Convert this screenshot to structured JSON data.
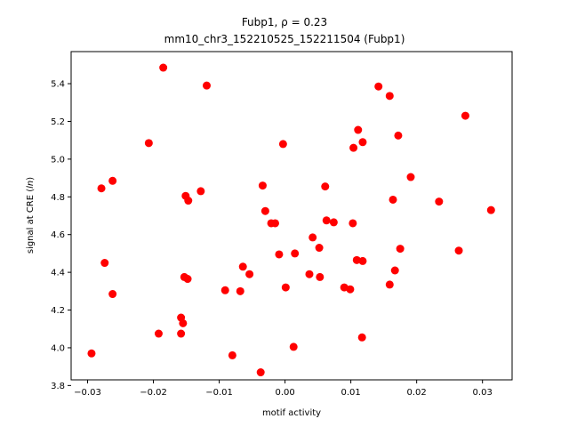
{
  "chart_data": {
    "type": "scatter",
    "title_line1": "Fubp1, ρ = 0.23",
    "title_line2": "mm10_chr3_152210525_152211504 (Fubp1)",
    "xlabel": "motif activity",
    "ylabel": "signal at CRE (ln)",
    "xlim": [
      -0.0325,
      0.0345
    ],
    "ylim": [
      3.83,
      5.57
    ],
    "xticks": [
      -0.03,
      -0.02,
      -0.01,
      0.0,
      0.01,
      0.02,
      0.03
    ],
    "xtick_labels": [
      "−0.03",
      "−0.02",
      "−0.01",
      "0.00",
      "0.01",
      "0.02",
      "0.03"
    ],
    "yticks": [
      3.8,
      4.0,
      4.2,
      4.4,
      4.6,
      4.8,
      5.0,
      5.2,
      5.4
    ],
    "ytick_labels": [
      "3.8",
      "4.0",
      "4.2",
      "4.4",
      "4.6",
      "4.8",
      "5.0",
      "5.2",
      "5.4"
    ],
    "marker_color": "#ff0000",
    "grid": false,
    "points": [
      {
        "x": -0.0294,
        "y": 3.97
      },
      {
        "x": -0.0279,
        "y": 4.845
      },
      {
        "x": -0.0274,
        "y": 4.45
      },
      {
        "x": -0.0262,
        "y": 4.885
      },
      {
        "x": -0.0262,
        "y": 4.285
      },
      {
        "x": -0.0207,
        "y": 5.085
      },
      {
        "x": -0.0192,
        "y": 4.075
      },
      {
        "x": -0.0185,
        "y": 5.485
      },
      {
        "x": -0.0158,
        "y": 4.16
      },
      {
        "x": -0.0158,
        "y": 4.075
      },
      {
        "x": -0.0155,
        "y": 4.13
      },
      {
        "x": -0.0153,
        "y": 4.375
      },
      {
        "x": -0.0151,
        "y": 4.805
      },
      {
        "x": -0.0148,
        "y": 4.365
      },
      {
        "x": -0.0147,
        "y": 4.78
      },
      {
        "x": -0.0128,
        "y": 4.83
      },
      {
        "x": -0.0119,
        "y": 5.39
      },
      {
        "x": -0.0091,
        "y": 4.305
      },
      {
        "x": -0.008,
        "y": 3.96
      },
      {
        "x": -0.0068,
        "y": 4.3
      },
      {
        "x": -0.0064,
        "y": 4.43
      },
      {
        "x": -0.0054,
        "y": 4.39
      },
      {
        "x": -0.0037,
        "y": 3.87
      },
      {
        "x": -0.0034,
        "y": 4.86
      },
      {
        "x": -0.003,
        "y": 4.725
      },
      {
        "x": -0.0021,
        "y": 4.66
      },
      {
        "x": -0.0015,
        "y": 4.66
      },
      {
        "x": -0.0009,
        "y": 4.495
      },
      {
        "x": -0.0003,
        "y": 5.08
      },
      {
        "x": 0.0001,
        "y": 4.32
      },
      {
        "x": 0.0013,
        "y": 4.005
      },
      {
        "x": 0.0015,
        "y": 4.5
      },
      {
        "x": 0.0037,
        "y": 4.39
      },
      {
        "x": 0.0042,
        "y": 4.585
      },
      {
        "x": 0.0052,
        "y": 4.53
      },
      {
        "x": 0.0053,
        "y": 4.375
      },
      {
        "x": 0.0061,
        "y": 4.855
      },
      {
        "x": 0.0063,
        "y": 4.675
      },
      {
        "x": 0.0074,
        "y": 4.665
      },
      {
        "x": 0.009,
        "y": 4.32
      },
      {
        "x": 0.0099,
        "y": 4.31
      },
      {
        "x": 0.0103,
        "y": 4.66
      },
      {
        "x": 0.0104,
        "y": 5.06
      },
      {
        "x": 0.0109,
        "y": 4.465
      },
      {
        "x": 0.0111,
        "y": 5.155
      },
      {
        "x": 0.0117,
        "y": 4.055
      },
      {
        "x": 0.0118,
        "y": 4.46
      },
      {
        "x": 0.0118,
        "y": 5.09
      },
      {
        "x": 0.0142,
        "y": 5.385
      },
      {
        "x": 0.0159,
        "y": 4.335
      },
      {
        "x": 0.0159,
        "y": 5.335
      },
      {
        "x": 0.0164,
        "y": 4.785
      },
      {
        "x": 0.0167,
        "y": 4.41
      },
      {
        "x": 0.0172,
        "y": 5.125
      },
      {
        "x": 0.0175,
        "y": 4.525
      },
      {
        "x": 0.0191,
        "y": 4.905
      },
      {
        "x": 0.0234,
        "y": 4.775
      },
      {
        "x": 0.0264,
        "y": 4.515
      },
      {
        "x": 0.0274,
        "y": 5.23
      },
      {
        "x": 0.0313,
        "y": 4.73
      }
    ]
  }
}
